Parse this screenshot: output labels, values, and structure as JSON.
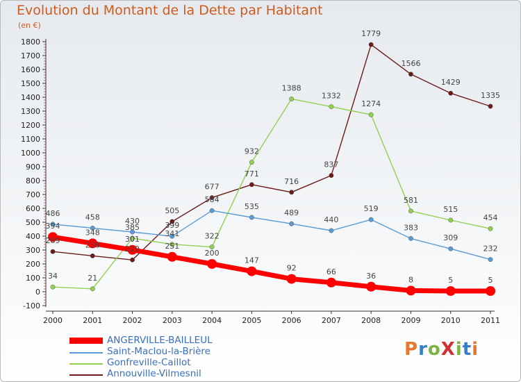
{
  "title": "Evolution du Montant de la Dette par Habitant",
  "unit_label": "(en €)",
  "logo": {
    "text": "ProXiti",
    "letter_colors": [
      "#e8762c",
      "#3b7dc4",
      "#7cb342",
      "#d32f2f",
      "#7cb342",
      "#3b7dc4",
      "#e8762c"
    ]
  },
  "chart_data": {
    "type": "line",
    "x": [
      "2000",
      "2001",
      "2002",
      "2003",
      "2004",
      "2005",
      "2006",
      "2007",
      "2008",
      "2009",
      "2010",
      "2011"
    ],
    "ylim": [
      -100,
      1800
    ],
    "yticks": [
      -100,
      0,
      100,
      200,
      300,
      400,
      500,
      600,
      700,
      800,
      900,
      1000,
      1100,
      1200,
      1300,
      1400,
      1500,
      1600,
      1700,
      1800
    ],
    "grid": false,
    "legend_position": "bottom-left",
    "series": [
      {
        "name": "ANGERVILLE-BAILLEUL",
        "color": "#ff0000",
        "values": [
          394,
          348,
          301,
          251,
          200,
          147,
          92,
          66,
          36,
          8,
          5,
          5
        ]
      },
      {
        "name": "Saint-Maclou-la-Brière",
        "color": "#5b9bd5",
        "values": [
          486,
          458,
          430,
          399,
          584,
          535,
          489,
          440,
          519,
          383,
          309,
          232
        ]
      },
      {
        "name": "Gonfreville-Caillot",
        "color": "#92d050",
        "values": [
          34,
          21,
          385,
          341,
          322,
          932,
          1388,
          1332,
          1274,
          581,
          515,
          454
        ]
      },
      {
        "name": "Annouville-Vilmesnil",
        "color": "#6b1a1a",
        "values": [
          289,
          258,
          229,
          505,
          677,
          771,
          716,
          837,
          1779,
          1566,
          1429,
          1335
        ]
      }
    ]
  }
}
